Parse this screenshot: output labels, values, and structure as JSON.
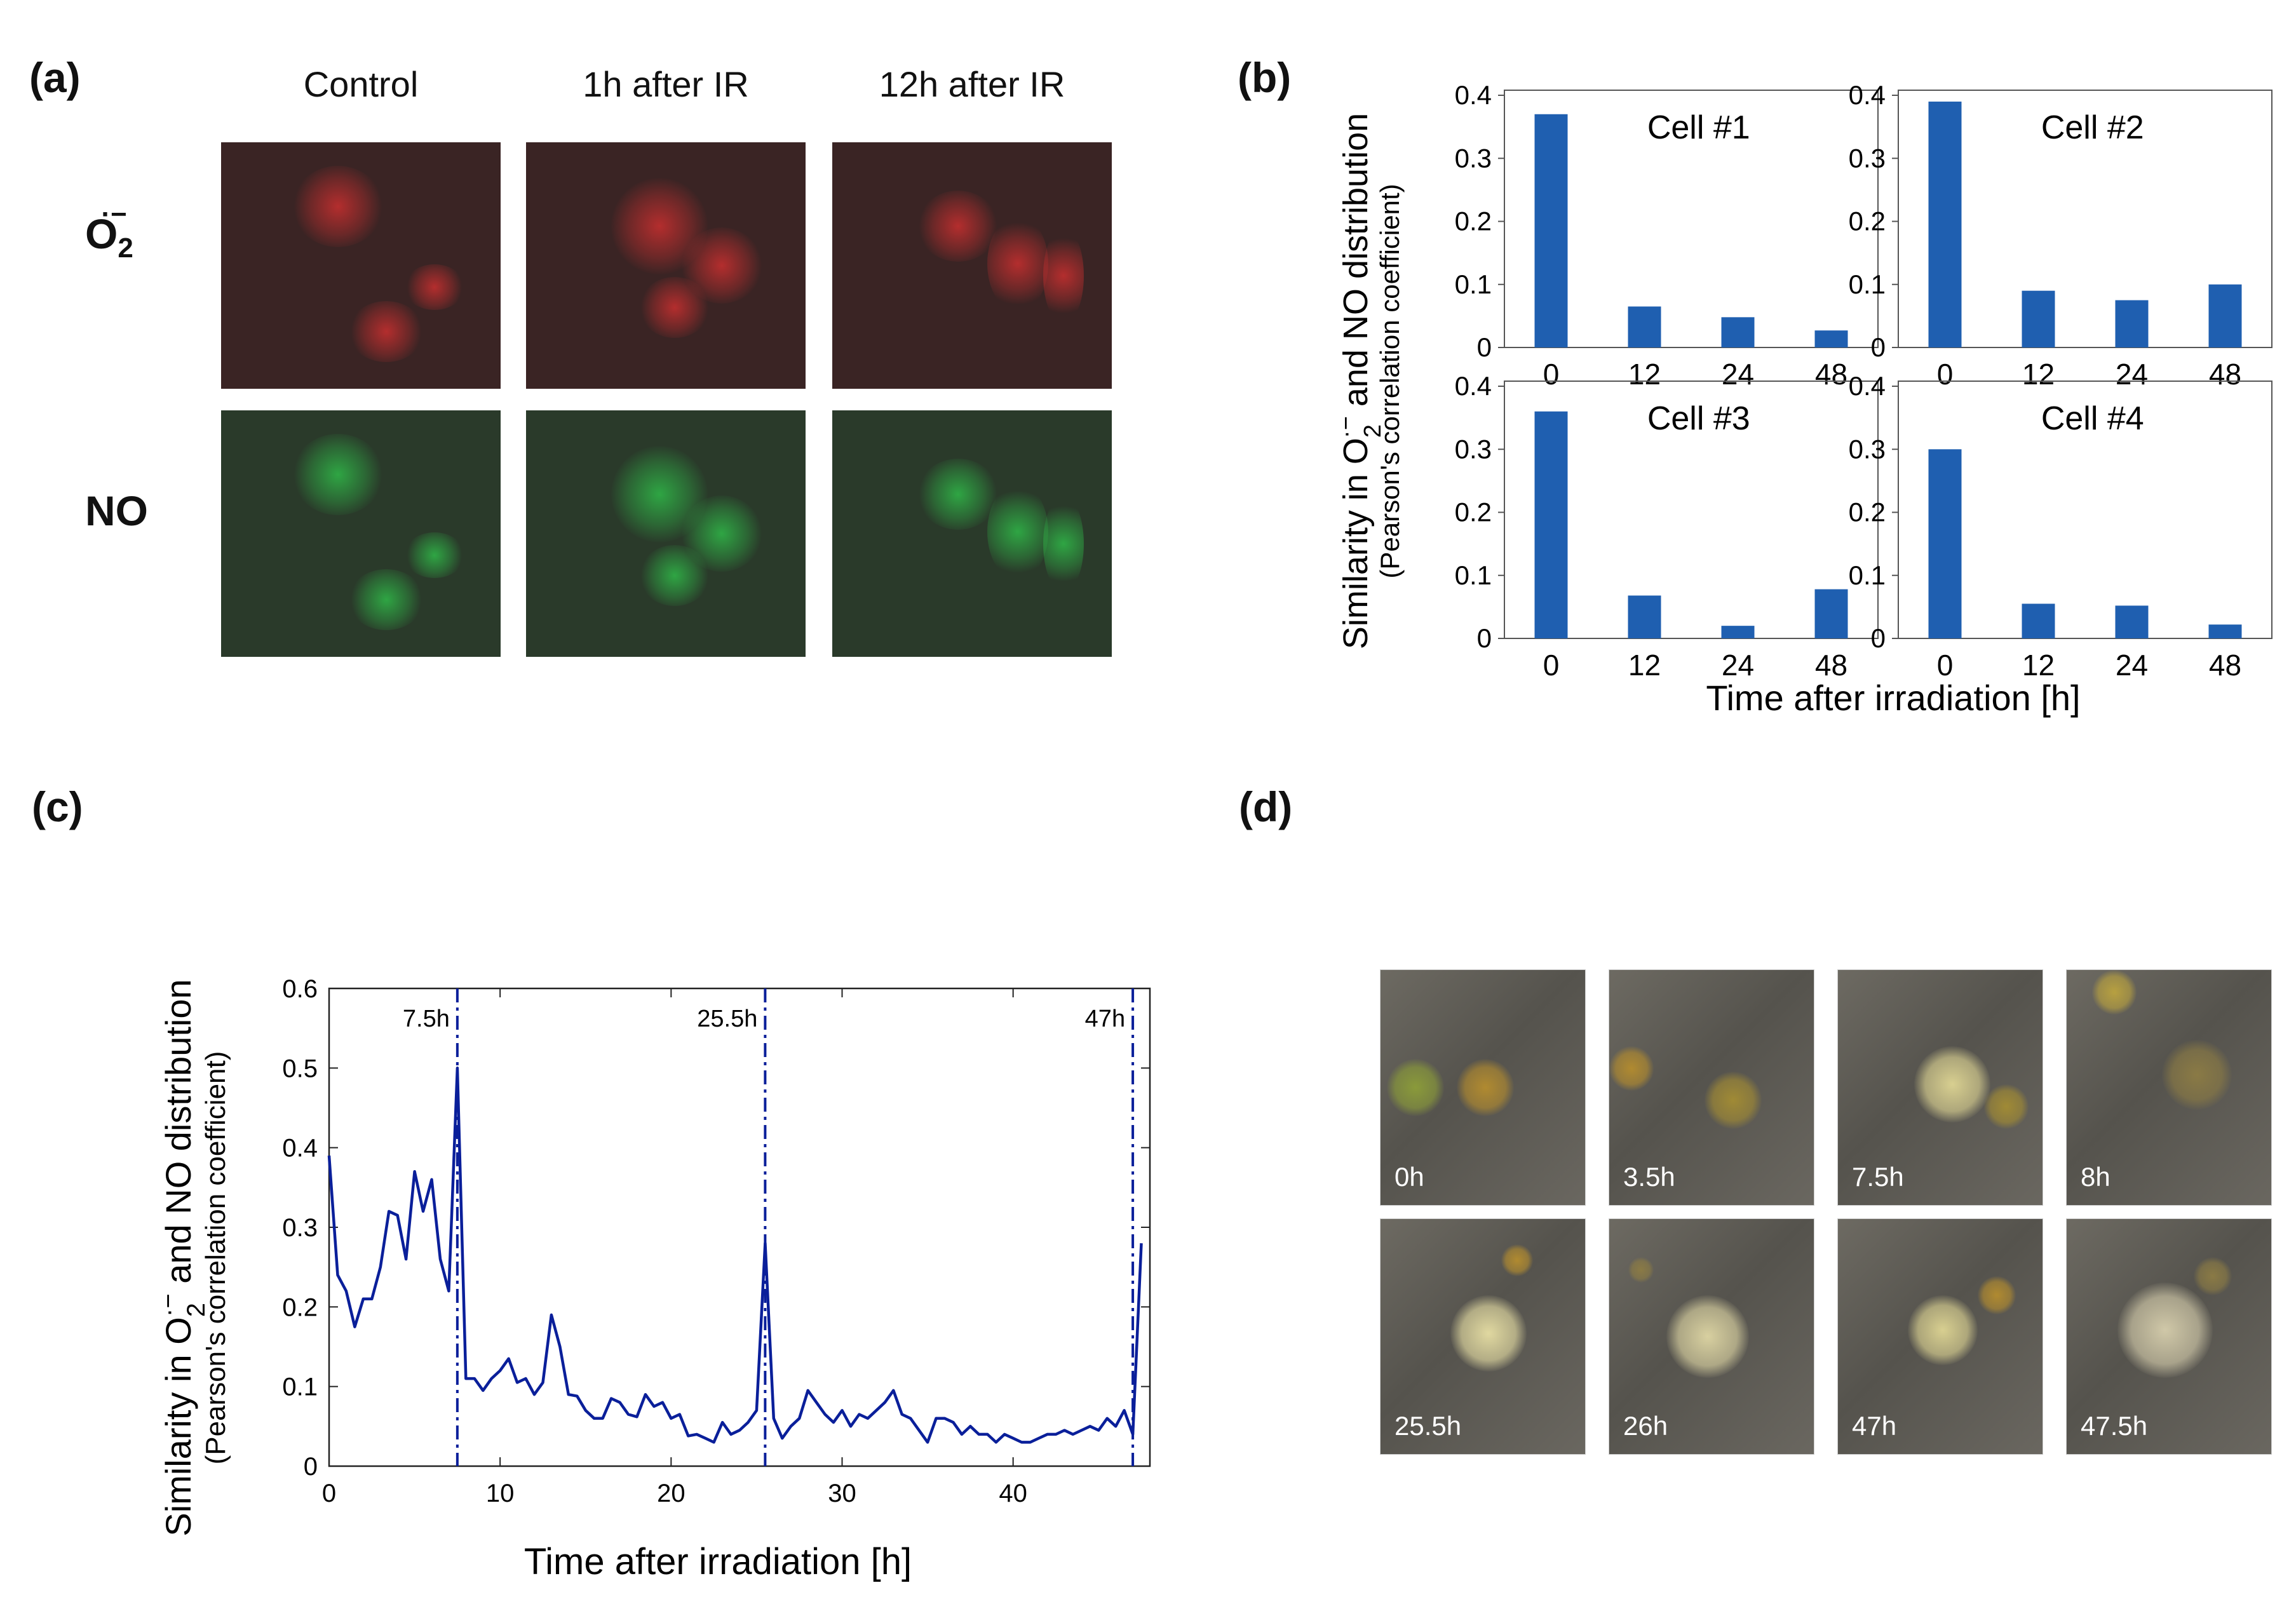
{
  "panel_a": {
    "label": "(a)",
    "columns": [
      "Control",
      "1h after IR",
      "12h after IR"
    ],
    "rows": [
      {
        "label_main": "O",
        "label_sub": "2",
        "label_sup": "·−",
        "color": "#d23030"
      },
      {
        "label_main": "NO",
        "label_sub": "",
        "label_sup": "",
        "color": "#30c04a"
      }
    ]
  },
  "panel_b": {
    "label": "(b)",
    "ylabel_pre": "Similarity in O",
    "ylabel_sub": "2",
    "ylabel_sup": "·−",
    "ylabel_post": " and NO distribution",
    "ylabel_2": "(Pearson's correlation coefficient)",
    "xlabel": "Time after irradiation [h]"
  },
  "panel_c": {
    "label": "(c)",
    "ylabel_pre": "Similarity in O",
    "ylabel_sub": "2",
    "ylabel_sup": "·−",
    "ylabel_post": " and NO distribution",
    "ylabel_2": "(Pearson's correlation coefficient)",
    "xlabel": "Time after irradiation [h]"
  },
  "panel_d": {
    "label": "(d)",
    "tiles": [
      "0h",
      "3.5h",
      "7.5h",
      "8h",
      "25.5h",
      "26h",
      "47h",
      "47.5h"
    ]
  },
  "chart_data": [
    {
      "type": "bar",
      "title": "Cell #1",
      "categories": [
        "0",
        "12",
        "24",
        "48"
      ],
      "values": [
        0.37,
        0.065,
        0.048,
        0.027
      ],
      "ylim": [
        0,
        0.4
      ],
      "yticks": [
        0,
        0.1,
        0.2,
        0.3,
        0.4
      ],
      "ytick_labels": [
        "0",
        "0.1",
        "0.2",
        "0.3",
        "0.4"
      ],
      "color": "#1f5fb0",
      "grid": false
    },
    {
      "type": "bar",
      "title": "Cell #2",
      "categories": [
        "0",
        "12",
        "24",
        "48"
      ],
      "values": [
        0.39,
        0.09,
        0.075,
        0.1
      ],
      "ylim": [
        0,
        0.4
      ],
      "yticks": [
        0,
        0.1,
        0.2,
        0.3,
        0.4
      ],
      "ytick_labels": [
        "0",
        "0.1",
        "0.2",
        "0.3",
        "0.4"
      ],
      "color": "#1f5fb0",
      "grid": false
    },
    {
      "type": "bar",
      "title": "Cell #3",
      "categories": [
        "0",
        "12",
        "24",
        "48"
      ],
      "values": [
        0.36,
        0.068,
        0.02,
        0.078
      ],
      "ylim": [
        0,
        0.4
      ],
      "yticks": [
        0,
        0.1,
        0.2,
        0.3,
        0.4
      ],
      "ytick_labels": [
        "0",
        "0.1",
        "0.2",
        "0.3",
        "0.4"
      ],
      "color": "#1f5fb0",
      "grid": false
    },
    {
      "type": "bar",
      "title": "Cell #4",
      "categories": [
        "0",
        "12",
        "24",
        "48"
      ],
      "values": [
        0.3,
        0.055,
        0.052,
        0.022
      ],
      "ylim": [
        0,
        0.4
      ],
      "yticks": [
        0,
        0.1,
        0.2,
        0.3,
        0.4
      ],
      "ytick_labels": [
        "0",
        "0.1",
        "0.2",
        "0.3",
        "0.4"
      ],
      "color": "#1f5fb0",
      "grid": false
    },
    {
      "type": "line",
      "color": "#0a1f9a",
      "xlim": [
        0,
        48
      ],
      "ylim": [
        0,
        0.6
      ],
      "xticks": [
        0,
        10,
        20,
        30,
        40
      ],
      "xtick_labels": [
        "0",
        "10",
        "20",
        "30",
        "40"
      ],
      "yticks": [
        0,
        0.1,
        0.2,
        0.3,
        0.4,
        0.5,
        0.6
      ],
      "ytick_labels": [
        "0",
        "0.1",
        "0.2",
        "0.3",
        "0.4",
        "0.5",
        "0.6"
      ],
      "x": [
        0,
        0.5,
        1,
        1.5,
        2,
        2.5,
        3,
        3.5,
        4,
        4.5,
        5,
        5.5,
        6,
        6.5,
        7,
        7.5,
        8,
        8.5,
        9,
        9.5,
        10,
        10.5,
        11,
        11.5,
        12,
        12.5,
        13,
        13.5,
        14,
        14.5,
        15,
        15.5,
        16,
        16.5,
        17,
        17.5,
        18,
        18.5,
        19,
        19.5,
        20,
        20.5,
        21,
        21.5,
        22,
        22.5,
        23,
        23.5,
        24,
        24.5,
        25,
        25.5,
        26,
        26.5,
        27,
        27.5,
        28,
        28.5,
        29,
        29.5,
        30,
        30.5,
        31,
        31.5,
        32,
        32.5,
        33,
        33.5,
        34,
        34.5,
        35,
        35.5,
        36,
        36.5,
        37,
        37.5,
        38,
        38.5,
        39,
        39.5,
        40,
        40.5,
        41,
        41.5,
        42,
        42.5,
        43,
        43.5,
        44,
        44.5,
        45,
        45.5,
        46,
        46.5,
        47,
        47.5
      ],
      "y": [
        0.39,
        0.24,
        0.22,
        0.175,
        0.21,
        0.21,
        0.25,
        0.32,
        0.315,
        0.26,
        0.37,
        0.32,
        0.36,
        0.26,
        0.22,
        0.5,
        0.11,
        0.11,
        0.095,
        0.11,
        0.12,
        0.135,
        0.105,
        0.11,
        0.09,
        0.105,
        0.19,
        0.15,
        0.09,
        0.088,
        0.07,
        0.06,
        0.06,
        0.085,
        0.08,
        0.065,
        0.062,
        0.09,
        0.075,
        0.08,
        0.06,
        0.065,
        0.038,
        0.04,
        0.035,
        0.03,
        0.055,
        0.04,
        0.045,
        0.055,
        0.07,
        0.28,
        0.06,
        0.035,
        0.05,
        0.06,
        0.095,
        0.08,
        0.065,
        0.055,
        0.07,
        0.05,
        0.065,
        0.06,
        0.07,
        0.08,
        0.095,
        0.065,
        0.06,
        0.045,
        0.03,
        0.06,
        0.06,
        0.055,
        0.04,
        0.05,
        0.04,
        0.04,
        0.03,
        0.04,
        0.035,
        0.03,
        0.03,
        0.035,
        0.04,
        0.04,
        0.045,
        0.04,
        0.045,
        0.05,
        0.045,
        0.06,
        0.05,
        0.07,
        0.04,
        0.28
      ],
      "annotations": [
        {
          "x": 7.5,
          "text": "7.5h"
        },
        {
          "x": 25.5,
          "text": "25.5h"
        },
        {
          "x": 47,
          "text": "47h"
        }
      ]
    }
  ]
}
